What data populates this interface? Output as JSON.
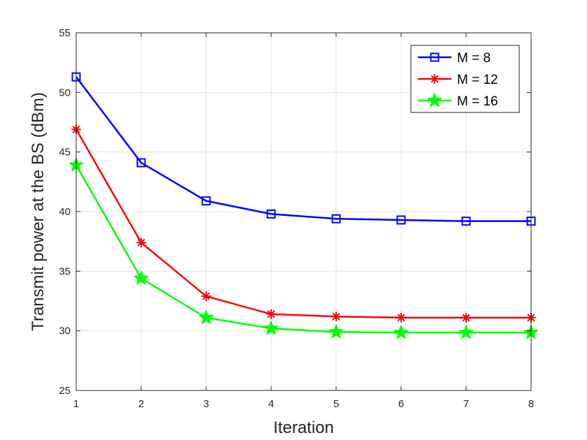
{
  "chart_data": {
    "type": "line",
    "title": "",
    "xlabel": "Iteration",
    "ylabel": "Transmit power at the BS (dBm)",
    "xlim": [
      1,
      8
    ],
    "ylim": [
      25,
      55
    ],
    "xticks": [
      1,
      2,
      3,
      4,
      5,
      6,
      7,
      8
    ],
    "yticks": [
      25,
      30,
      35,
      40,
      45,
      50,
      55
    ],
    "grid": true,
    "legend_position": "top-right",
    "x": [
      1,
      2,
      3,
      4,
      5,
      6,
      7,
      8
    ],
    "series": [
      {
        "name": "M = 8",
        "color": "#0000ff",
        "marker": "square",
        "values": [
          51.3,
          44.1,
          40.9,
          39.8,
          39.4,
          39.3,
          39.2,
          39.2
        ]
      },
      {
        "name": "M = 12",
        "color": "#ff0000",
        "marker": "asterisk",
        "values": [
          46.9,
          37.4,
          32.9,
          31.4,
          31.2,
          31.1,
          31.1,
          31.1
        ]
      },
      {
        "name": "M = 16",
        "color": "#00ff00",
        "marker": "star",
        "values": [
          43.9,
          34.4,
          31.1,
          30.2,
          29.9,
          29.85,
          29.85,
          29.85
        ]
      }
    ]
  }
}
